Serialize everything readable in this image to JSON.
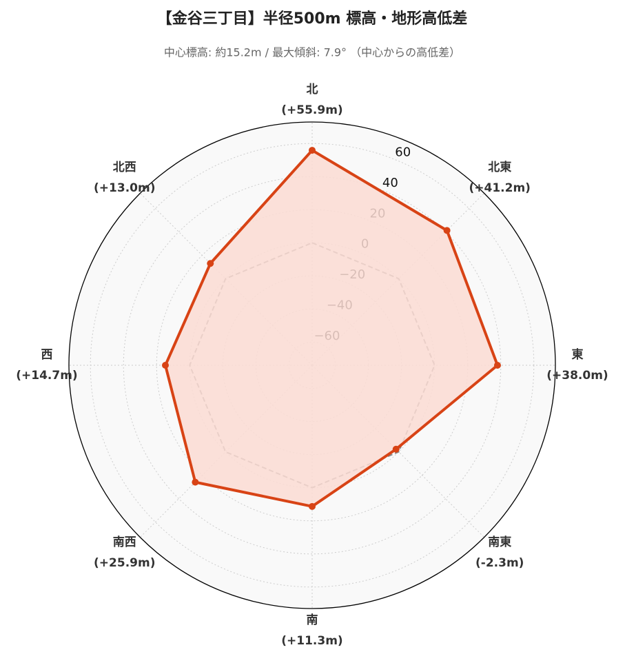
{
  "chart_data": {
    "type": "radar",
    "title": "【金谷三丁目】半径500m 標高・地形高低差",
    "subtitle": "中心標高: 約15.2m / 最大傾斜: 7.9° （中心からの高低差）",
    "categories": [
      "北",
      "北東",
      "東",
      "南東",
      "南",
      "南西",
      "西",
      "北西"
    ],
    "series": [
      {
        "color": "#d84315",
        "fill": "#fcdcd3",
        "values": [
          55.9,
          41.2,
          38.0,
          -2.3,
          11.3,
          25.9,
          14.7,
          13.0
        ],
        "value_labels": [
          "(+55.9m)",
          "(+41.2m)",
          "(+38.0m)",
          "(-2.3m)",
          "(+11.3m)",
          "(+25.9m)",
          "(+14.7m)",
          "(+13.0m)"
        ]
      }
    ],
    "reference_line": {
      "value": 0,
      "color": "#888888",
      "style": "dashed"
    },
    "ylim": [
      -74,
      73
    ],
    "yticks": [
      {
        "value": -60,
        "label": "−60"
      },
      {
        "value": -40,
        "label": "−40"
      },
      {
        "value": -20,
        "label": "−20"
      },
      0,
      20,
      40,
      60
    ],
    "grid": true
  }
}
